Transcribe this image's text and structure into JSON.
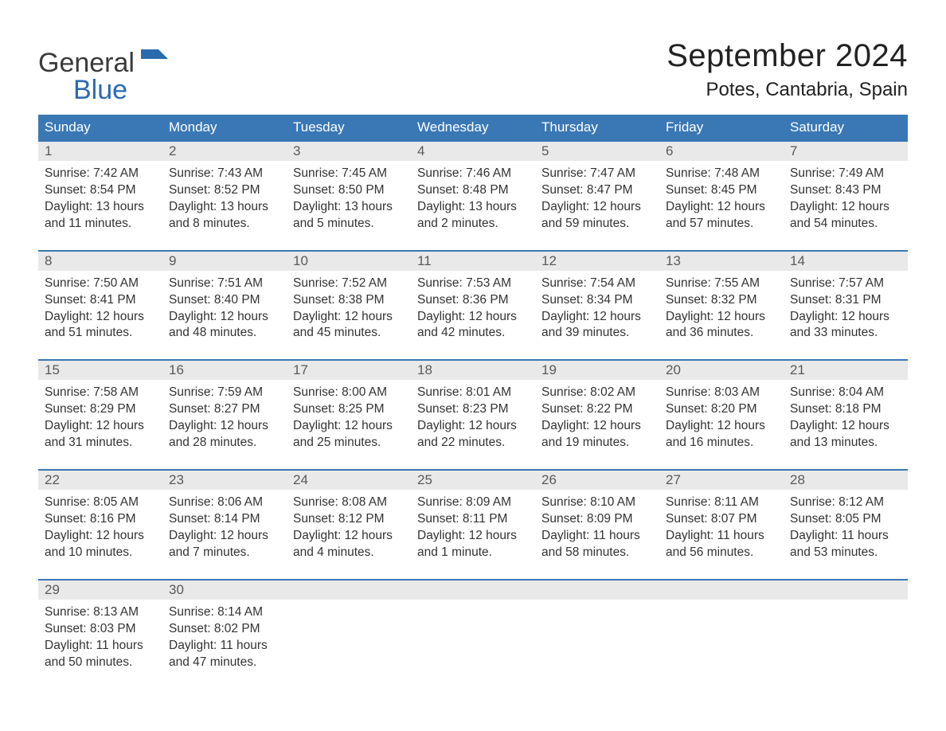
{
  "logo": {
    "word1": "General",
    "word2": "Blue"
  },
  "title": "September 2024",
  "location": "Potes, Cantabria, Spain",
  "colors": {
    "header_bg": "#3a78b5",
    "header_text": "#ffffff",
    "daynum_bg": "#e9e9e9",
    "daynum_text": "#5a5a5a",
    "body_text": "#333333",
    "week_border": "#3a78b5",
    "logo_gray": "#3a3a3a",
    "logo_blue": "#2a6bb0",
    "background": "#ffffff"
  },
  "weekdays": [
    "Sunday",
    "Monday",
    "Tuesday",
    "Wednesday",
    "Thursday",
    "Friday",
    "Saturday"
  ],
  "weeks": [
    [
      {
        "n": "1",
        "sunrise": "Sunrise: 7:42 AM",
        "sunset": "Sunset: 8:54 PM",
        "d1": "Daylight: 13 hours",
        "d2": "and 11 minutes."
      },
      {
        "n": "2",
        "sunrise": "Sunrise: 7:43 AM",
        "sunset": "Sunset: 8:52 PM",
        "d1": "Daylight: 13 hours",
        "d2": "and 8 minutes."
      },
      {
        "n": "3",
        "sunrise": "Sunrise: 7:45 AM",
        "sunset": "Sunset: 8:50 PM",
        "d1": "Daylight: 13 hours",
        "d2": "and 5 minutes."
      },
      {
        "n": "4",
        "sunrise": "Sunrise: 7:46 AM",
        "sunset": "Sunset: 8:48 PM",
        "d1": "Daylight: 13 hours",
        "d2": "and 2 minutes."
      },
      {
        "n": "5",
        "sunrise": "Sunrise: 7:47 AM",
        "sunset": "Sunset: 8:47 PM",
        "d1": "Daylight: 12 hours",
        "d2": "and 59 minutes."
      },
      {
        "n": "6",
        "sunrise": "Sunrise: 7:48 AM",
        "sunset": "Sunset: 8:45 PM",
        "d1": "Daylight: 12 hours",
        "d2": "and 57 minutes."
      },
      {
        "n": "7",
        "sunrise": "Sunrise: 7:49 AM",
        "sunset": "Sunset: 8:43 PM",
        "d1": "Daylight: 12 hours",
        "d2": "and 54 minutes."
      }
    ],
    [
      {
        "n": "8",
        "sunrise": "Sunrise: 7:50 AM",
        "sunset": "Sunset: 8:41 PM",
        "d1": "Daylight: 12 hours",
        "d2": "and 51 minutes."
      },
      {
        "n": "9",
        "sunrise": "Sunrise: 7:51 AM",
        "sunset": "Sunset: 8:40 PM",
        "d1": "Daylight: 12 hours",
        "d2": "and 48 minutes."
      },
      {
        "n": "10",
        "sunrise": "Sunrise: 7:52 AM",
        "sunset": "Sunset: 8:38 PM",
        "d1": "Daylight: 12 hours",
        "d2": "and 45 minutes."
      },
      {
        "n": "11",
        "sunrise": "Sunrise: 7:53 AM",
        "sunset": "Sunset: 8:36 PM",
        "d1": "Daylight: 12 hours",
        "d2": "and 42 minutes."
      },
      {
        "n": "12",
        "sunrise": "Sunrise: 7:54 AM",
        "sunset": "Sunset: 8:34 PM",
        "d1": "Daylight: 12 hours",
        "d2": "and 39 minutes."
      },
      {
        "n": "13",
        "sunrise": "Sunrise: 7:55 AM",
        "sunset": "Sunset: 8:32 PM",
        "d1": "Daylight: 12 hours",
        "d2": "and 36 minutes."
      },
      {
        "n": "14",
        "sunrise": "Sunrise: 7:57 AM",
        "sunset": "Sunset: 8:31 PM",
        "d1": "Daylight: 12 hours",
        "d2": "and 33 minutes."
      }
    ],
    [
      {
        "n": "15",
        "sunrise": "Sunrise: 7:58 AM",
        "sunset": "Sunset: 8:29 PM",
        "d1": "Daylight: 12 hours",
        "d2": "and 31 minutes."
      },
      {
        "n": "16",
        "sunrise": "Sunrise: 7:59 AM",
        "sunset": "Sunset: 8:27 PM",
        "d1": "Daylight: 12 hours",
        "d2": "and 28 minutes."
      },
      {
        "n": "17",
        "sunrise": "Sunrise: 8:00 AM",
        "sunset": "Sunset: 8:25 PM",
        "d1": "Daylight: 12 hours",
        "d2": "and 25 minutes."
      },
      {
        "n": "18",
        "sunrise": "Sunrise: 8:01 AM",
        "sunset": "Sunset: 8:23 PM",
        "d1": "Daylight: 12 hours",
        "d2": "and 22 minutes."
      },
      {
        "n": "19",
        "sunrise": "Sunrise: 8:02 AM",
        "sunset": "Sunset: 8:22 PM",
        "d1": "Daylight: 12 hours",
        "d2": "and 19 minutes."
      },
      {
        "n": "20",
        "sunrise": "Sunrise: 8:03 AM",
        "sunset": "Sunset: 8:20 PM",
        "d1": "Daylight: 12 hours",
        "d2": "and 16 minutes."
      },
      {
        "n": "21",
        "sunrise": "Sunrise: 8:04 AM",
        "sunset": "Sunset: 8:18 PM",
        "d1": "Daylight: 12 hours",
        "d2": "and 13 minutes."
      }
    ],
    [
      {
        "n": "22",
        "sunrise": "Sunrise: 8:05 AM",
        "sunset": "Sunset: 8:16 PM",
        "d1": "Daylight: 12 hours",
        "d2": "and 10 minutes."
      },
      {
        "n": "23",
        "sunrise": "Sunrise: 8:06 AM",
        "sunset": "Sunset: 8:14 PM",
        "d1": "Daylight: 12 hours",
        "d2": "and 7 minutes."
      },
      {
        "n": "24",
        "sunrise": "Sunrise: 8:08 AM",
        "sunset": "Sunset: 8:12 PM",
        "d1": "Daylight: 12 hours",
        "d2": "and 4 minutes."
      },
      {
        "n": "25",
        "sunrise": "Sunrise: 8:09 AM",
        "sunset": "Sunset: 8:11 PM",
        "d1": "Daylight: 12 hours",
        "d2": "and 1 minute."
      },
      {
        "n": "26",
        "sunrise": "Sunrise: 8:10 AM",
        "sunset": "Sunset: 8:09 PM",
        "d1": "Daylight: 11 hours",
        "d2": "and 58 minutes."
      },
      {
        "n": "27",
        "sunrise": "Sunrise: 8:11 AM",
        "sunset": "Sunset: 8:07 PM",
        "d1": "Daylight: 11 hours",
        "d2": "and 56 minutes."
      },
      {
        "n": "28",
        "sunrise": "Sunrise: 8:12 AM",
        "sunset": "Sunset: 8:05 PM",
        "d1": "Daylight: 11 hours",
        "d2": "and 53 minutes."
      }
    ],
    [
      {
        "n": "29",
        "sunrise": "Sunrise: 8:13 AM",
        "sunset": "Sunset: 8:03 PM",
        "d1": "Daylight: 11 hours",
        "d2": "and 50 minutes."
      },
      {
        "n": "30",
        "sunrise": "Sunrise: 8:14 AM",
        "sunset": "Sunset: 8:02 PM",
        "d1": "Daylight: 11 hours",
        "d2": "and 47 minutes."
      },
      {
        "n": "",
        "sunrise": "",
        "sunset": "",
        "d1": "",
        "d2": ""
      },
      {
        "n": "",
        "sunrise": "",
        "sunset": "",
        "d1": "",
        "d2": ""
      },
      {
        "n": "",
        "sunrise": "",
        "sunset": "",
        "d1": "",
        "d2": ""
      },
      {
        "n": "",
        "sunrise": "",
        "sunset": "",
        "d1": "",
        "d2": ""
      },
      {
        "n": "",
        "sunrise": "",
        "sunset": "",
        "d1": "",
        "d2": ""
      }
    ]
  ]
}
